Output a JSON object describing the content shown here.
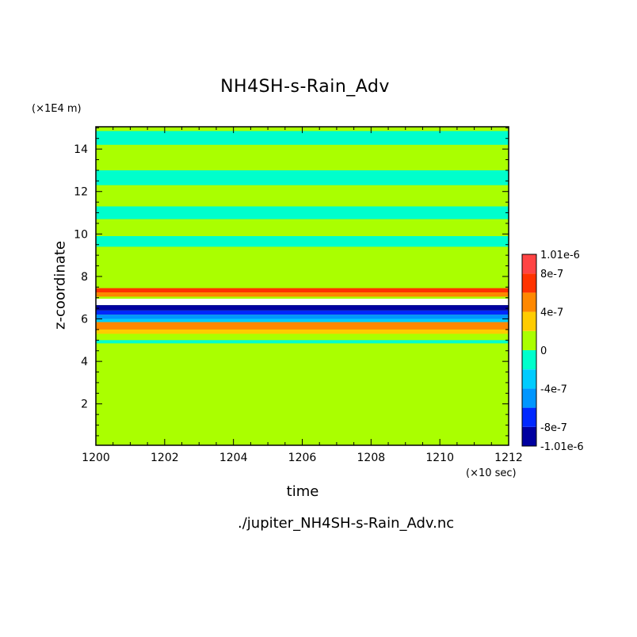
{
  "chart_data": {
    "type": "heatmap",
    "title": "NH4SH-s-Rain_Adv",
    "xlabel": "time",
    "ylabel": "z-coordinate",
    "x_unit": "(×10 sec)",
    "y_unit": "(×1E4 m)",
    "xlim": [
      1200,
      1212
    ],
    "ylim": [
      0.05,
      15.05
    ],
    "x_ticks": [
      "1200",
      "1202",
      "1204",
      "1206",
      "1208",
      "1210",
      "1212"
    ],
    "y_ticks": [
      "2",
      "4",
      "6",
      "8",
      "10",
      "12",
      "14"
    ],
    "colorbar": {
      "labels": [
        "1.01e-6",
        "8e-7",
        "4e-7",
        "0",
        "-4e-7",
        "-8e-7",
        "-1.01e-6"
      ],
      "colors": [
        "#0000a0",
        "#0028ff",
        "#0096ff",
        "#00ccff",
        "#00ffcc",
        "#aaff00",
        "#ffcc00",
        "#ff8800",
        "#ff3300",
        "#ff4444"
      ],
      "boundaries": [
        -1.01e-06,
        -8e-07,
        -6e-07,
        -4e-07,
        -2e-07,
        0,
        2e-07,
        4e-07,
        6e-07,
        8e-07,
        1.01e-06
      ]
    },
    "background_value_color": "#aaff00",
    "bands": [
      {
        "t0": 1200,
        "t1": 1212,
        "z0": 14.2,
        "z1": 14.85,
        "color": "#00ffcc"
      },
      {
        "t0": 1200,
        "t1": 1212,
        "z0": 12.3,
        "z1": 13.0,
        "color": "#00ffcc"
      },
      {
        "t0": 1200,
        "t1": 1212,
        "z0": 10.7,
        "z1": 11.3,
        "color": "#00ffcc"
      },
      {
        "t0": 1200,
        "t1": 1212,
        "z0": 9.4,
        "z1": 9.9,
        "color": "#00ffcc"
      },
      {
        "t0": 1200,
        "t1": 1212,
        "z0": 7.25,
        "z1": 7.45,
        "color": "#ff3300"
      },
      {
        "t0": 1200,
        "t1": 1212,
        "z0": 7.05,
        "z1": 7.25,
        "color": "#ff8800"
      },
      {
        "t0": 1200,
        "t1": 1212,
        "z0": 6.65,
        "z1": 6.95,
        "color": "#ffffff"
      },
      {
        "t0": 1200,
        "t1": 1212,
        "z0": 6.4,
        "z1": 6.65,
        "color": "#0000a0"
      },
      {
        "t0": 1200,
        "t1": 1212,
        "z0": 6.2,
        "z1": 6.4,
        "color": "#0028ff"
      },
      {
        "t0": 1200,
        "t1": 1212,
        "z0": 6.0,
        "z1": 6.2,
        "color": "#0096ff"
      },
      {
        "t0": 1200,
        "t1": 1212,
        "z0": 5.85,
        "z1": 6.0,
        "color": "#00ccff"
      },
      {
        "t0": 1200,
        "t1": 1212,
        "z0": 5.5,
        "z1": 5.85,
        "color": "#ff8800"
      },
      {
        "t0": 1200,
        "t1": 1212,
        "z0": 5.3,
        "z1": 5.5,
        "color": "#ffcc00"
      },
      {
        "t0": 1200,
        "t1": 1212,
        "z0": 4.85,
        "z1": 5.0,
        "color": "#00ffcc"
      }
    ]
  },
  "footer": "./jupiter_NH4SH-s-Rain_Adv.nc"
}
